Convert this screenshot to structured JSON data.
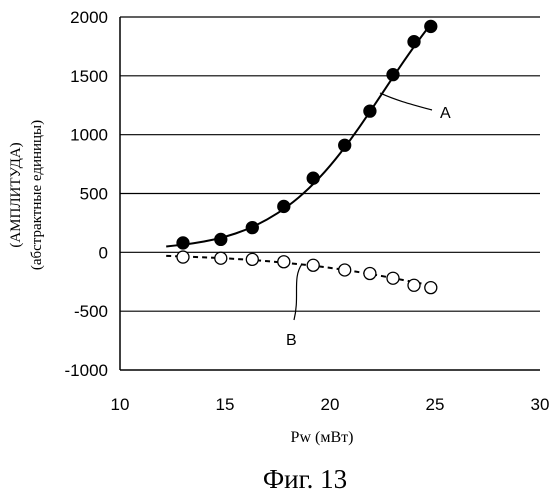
{
  "chart_data": {
    "type": "scatter",
    "title": "",
    "caption": "Фиг. 13",
    "xlabel": "Pw (мВт)",
    "ylabel_line1": "(АМПЛИТУДА)",
    "ylabel_line2": "(абстрактные единицы)",
    "xlim": [
      10,
      30
    ],
    "ylim": [
      -1000,
      2000
    ],
    "x_ticks": [
      10,
      15,
      20,
      25,
      30
    ],
    "y_ticks": [
      -1000,
      -500,
      0,
      500,
      1000,
      1500,
      2000
    ],
    "grid": "horizontal",
    "series": [
      {
        "name": "A",
        "marker": "filled-circle",
        "fit_line": "solid",
        "x": [
          13.0,
          14.8,
          16.3,
          17.8,
          19.2,
          20.7,
          21.9,
          23.0,
          24.0,
          24.8
        ],
        "y": [
          80,
          110,
          210,
          390,
          630,
          910,
          1200,
          1510,
          1790,
          1920
        ]
      },
      {
        "name": "B",
        "marker": "open-circle",
        "fit_line": "dashed",
        "x": [
          13.0,
          14.8,
          16.3,
          17.8,
          19.2,
          20.7,
          21.9,
          23.0,
          24.0,
          24.8
        ],
        "y": [
          -40,
          -50,
          -60,
          -80,
          -110,
          -150,
          -180,
          -220,
          -280,
          -300
        ]
      }
    ],
    "fit_curves": {
      "A": {
        "x": [
          12.2,
          13,
          14,
          15,
          16,
          17,
          18,
          19,
          20,
          21,
          22,
          23,
          24,
          24.8
        ],
        "y": [
          50,
          65,
          90,
          130,
          190,
          275,
          390,
          540,
          730,
          960,
          1220,
          1490,
          1750,
          1940
        ]
      },
      "B": {
        "x": [
          12.2,
          14,
          16,
          18,
          20,
          22,
          24.5
        ],
        "y": [
          -30,
          -42,
          -60,
          -90,
          -130,
          -185,
          -270
        ]
      }
    }
  }
}
